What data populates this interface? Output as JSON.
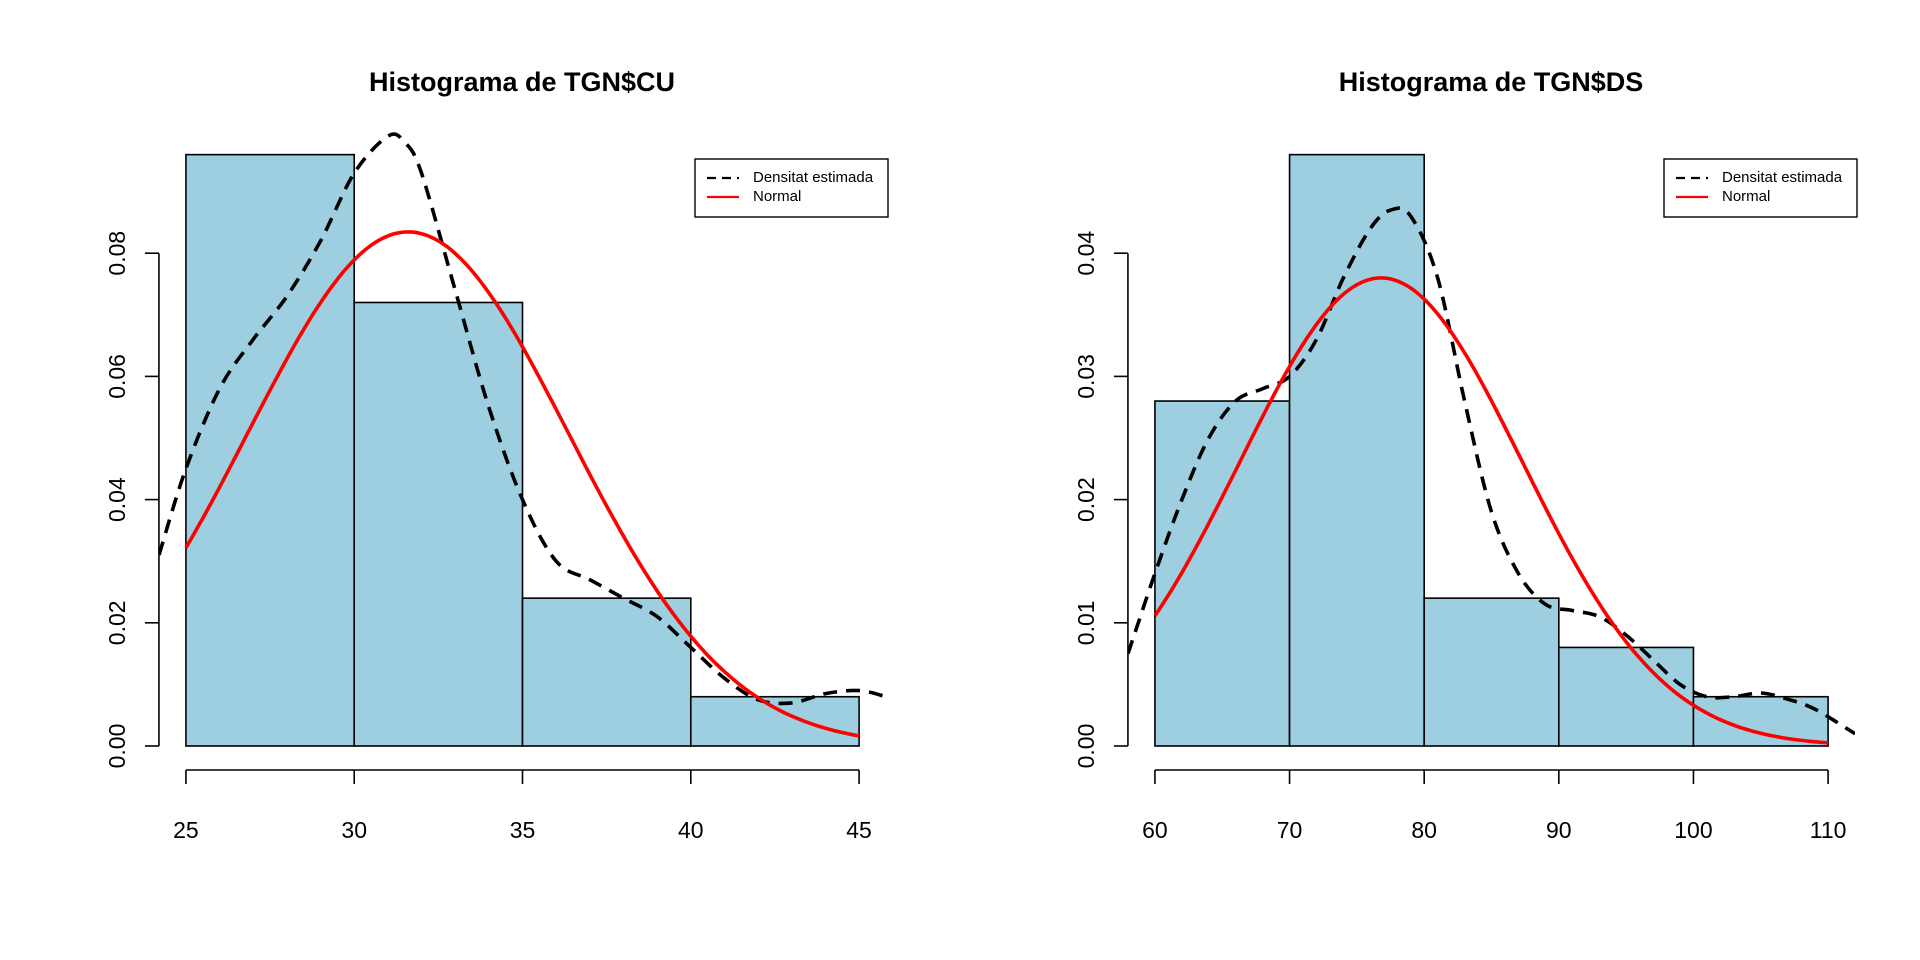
{
  "chart_data": [
    {
      "type": "bar",
      "title": "Histograma de TGN$CU",
      "xlabel": "",
      "ylabel": "",
      "bin_edges": [
        25,
        30,
        35,
        40,
        45
      ],
      "values": [
        0.096,
        0.072,
        0.024,
        0.008
      ],
      "xlim": [
        24.2,
        45.8
      ],
      "ylim": [
        0,
        0.1
      ],
      "xticks": [
        "25",
        "30",
        "35",
        "40",
        "45"
      ],
      "yticks": [
        "0.00",
        "0.02",
        "0.04",
        "0.06",
        "0.08"
      ],
      "bar_color": "#9ECFE0",
      "normal_color": "#FF0000",
      "density_color": "#000000",
      "legend": {
        "position": "top-right",
        "entries": [
          "Densitat estimada",
          "Normal"
        ]
      },
      "series": [
        {
          "style": "dashed",
          "x": [
            24.2,
            25.0,
            26.0,
            27.0,
            28.0,
            29.0,
            30.0,
            31.0,
            31.5,
            32.0,
            33.0,
            34.0,
            35.0,
            36.0,
            37.0,
            38.0,
            39.0,
            40.0,
            41.0,
            42.0,
            43.0,
            44.0,
            45.0,
            45.8
          ],
          "y": [
            0.031,
            0.045,
            0.058,
            0.066,
            0.073,
            0.082,
            0.093,
            0.099,
            0.098,
            0.093,
            0.074,
            0.055,
            0.04,
            0.03,
            0.027,
            0.024,
            0.021,
            0.016,
            0.011,
            0.0075,
            0.007,
            0.0085,
            0.009,
            0.008
          ]
        },
        {
          "style": "normal",
          "mean": 31.6,
          "sd": 4.78,
          "xrange": [
            25,
            45
          ]
        }
      ]
    },
    {
      "type": "bar",
      "title": "Histograma de TGN$DS",
      "xlabel": "",
      "ylabel": "",
      "bin_edges": [
        60,
        70,
        80,
        90,
        100,
        110
      ],
      "values": [
        0.028,
        0.048,
        0.012,
        0.008,
        0.004
      ],
      "xlim": [
        58.0,
        112.0
      ],
      "ylim": [
        0,
        0.05
      ],
      "xticks": [
        "60",
        "70",
        "80",
        "90",
        "100",
        "110"
      ],
      "yticks": [
        "0.00",
        "0.01",
        "0.02",
        "0.03",
        "0.04"
      ],
      "bar_color": "#9ECFE0",
      "normal_color": "#FF0000",
      "density_color": "#000000",
      "legend": {
        "position": "top-right",
        "entries": [
          "Densitat estimada",
          "Normal"
        ]
      },
      "series": [
        {
          "style": "dashed",
          "x": [
            58.0,
            60.0,
            62.0,
            64.0,
            66.0,
            68.0,
            70.0,
            72.0,
            74.0,
            76.0,
            77.5,
            79.0,
            81.0,
            83.0,
            85.0,
            87.0,
            89.0,
            91.0,
            93.0,
            95.0,
            97.0,
            99.0,
            101.0,
            103.0,
            105.0,
            107.0,
            109.0,
            112.0
          ],
          "y": [
            0.0075,
            0.014,
            0.02,
            0.025,
            0.028,
            0.029,
            0.03,
            0.033,
            0.038,
            0.042,
            0.0435,
            0.043,
            0.038,
            0.028,
            0.019,
            0.014,
            0.0115,
            0.011,
            0.0105,
            0.009,
            0.007,
            0.005,
            0.004,
            0.004,
            0.0043,
            0.0038,
            0.003,
            0.001
          ]
        },
        {
          "style": "normal",
          "mean": 76.8,
          "sd": 10.5,
          "xrange": [
            60,
            110
          ]
        }
      ]
    }
  ]
}
